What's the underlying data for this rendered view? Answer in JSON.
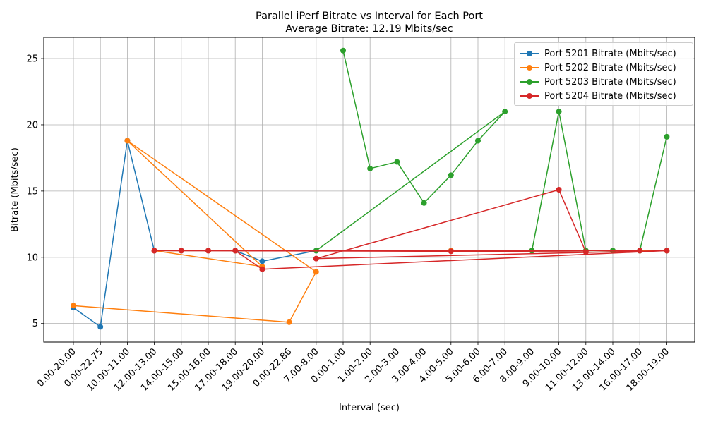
{
  "chart_data": {
    "type": "line",
    "title": "Parallel iPerf Bitrate vs Interval for Each Port",
    "subtitle": "Average Bitrate: 12.19 Mbits/sec",
    "xlabel": "Interval (sec)",
    "ylabel": "Bitrate (Mbits/sec)",
    "ylim": [
      3.6,
      26.6
    ],
    "yticks": [
      5,
      10,
      15,
      20,
      25
    ],
    "grid": true,
    "legend_position": "top-right",
    "categories": [
      "0.00-20.00",
      "0.00-22.75",
      "10.00-11.00",
      "12.00-13.00",
      "14.00-15.00",
      "15.00-16.00",
      "17.00-18.00",
      "19.00-20.00",
      "0.00-22.86",
      "7.00-8.00",
      "0.00-1.00",
      "1.00-2.00",
      "2.00-3.00",
      "3.00-4.00",
      "4.00-5.00",
      "5.00-6.00",
      "6.00-7.00",
      "8.00-9.00",
      "9.00-10.00",
      "11.00-12.00",
      "13.00-14.00",
      "16.00-17.00",
      "18.00-19.00"
    ],
    "series": [
      {
        "name": "Port 5201 Bitrate (Mbits/sec)",
        "color": "#1f77b4",
        "x": [
          "0.00-20.00",
          "0.00-22.75",
          "10.00-11.00",
          "12.00-13.00",
          "14.00-15.00",
          "15.00-16.00",
          "17.00-18.00",
          "19.00-20.00",
          "7.00-8.00",
          "4.00-5.00",
          "8.00-9.00",
          "11.00-12.00",
          "13.00-14.00",
          "16.00-17.00",
          "18.00-19.00"
        ],
        "values": [
          6.2,
          4.75,
          18.8,
          10.5,
          10.5,
          10.5,
          10.5,
          9.7,
          10.5,
          10.5,
          10.5,
          10.5,
          10.5,
          10.5,
          10.5
        ]
      },
      {
        "name": "Port 5202 Bitrate (Mbits/sec)",
        "color": "#ff7f0e",
        "x": [
          "0.00-20.00",
          "0.00-22.86",
          "7.00-8.00",
          "10.00-11.00",
          "19.00-20.00",
          "12.00-13.00",
          "14.00-15.00",
          "15.00-16.00",
          "17.00-18.00",
          "4.00-5.00",
          "8.00-9.00",
          "11.00-12.00",
          "13.00-14.00",
          "16.00-17.00",
          "18.00-19.00"
        ],
        "values": [
          6.35,
          5.1,
          8.9,
          18.8,
          9.3,
          10.5,
          10.5,
          10.5,
          10.5,
          10.5,
          10.5,
          10.5,
          10.5,
          10.5,
          10.5
        ]
      },
      {
        "name": "Port 5203 Bitrate (Mbits/sec)",
        "color": "#2ca02c",
        "x": [
          "0.00-1.00",
          "1.00-2.00",
          "2.00-3.00",
          "3.00-4.00",
          "4.00-5.00",
          "5.00-6.00",
          "6.00-7.00",
          "7.00-8.00",
          "8.00-9.00",
          "9.00-10.00",
          "11.00-12.00",
          "13.00-14.00",
          "16.00-17.00",
          "18.00-19.00"
        ],
        "order": [
          "0.00-1.00",
          "1.00-2.00",
          "2.00-3.00",
          "3.00-4.00",
          "4.00-5.00",
          "5.00-6.00",
          "6.00-7.00",
          "7.00-8.00",
          "8.00-9.00",
          "9.00-10.00",
          "11.00-12.00",
          "13.00-14.00",
          "16.00-17.00",
          "18.00-19.00"
        ],
        "values": [
          25.6,
          16.7,
          17.2,
          14.1,
          16.2,
          18.8,
          21.0,
          10.5,
          10.5,
          21.0,
          10.5,
          10.5,
          10.5,
          19.1
        ]
      },
      {
        "name": "Port 5204 Bitrate (Mbits/sec)",
        "color": "#d62728",
        "x": [
          "12.00-13.00",
          "14.00-15.00",
          "15.00-16.00",
          "17.00-18.00",
          "19.00-20.00",
          "18.00-19.00",
          "7.00-8.00",
          "9.00-10.00",
          "11.00-12.00",
          "4.00-5.00",
          "12.00-13.00",
          "16.00-17.00"
        ],
        "values": [
          10.5,
          10.5,
          10.5,
          10.5,
          9.1,
          10.5,
          9.9,
          15.1,
          10.4,
          10.45,
          10.5,
          10.5
        ]
      }
    ]
  }
}
